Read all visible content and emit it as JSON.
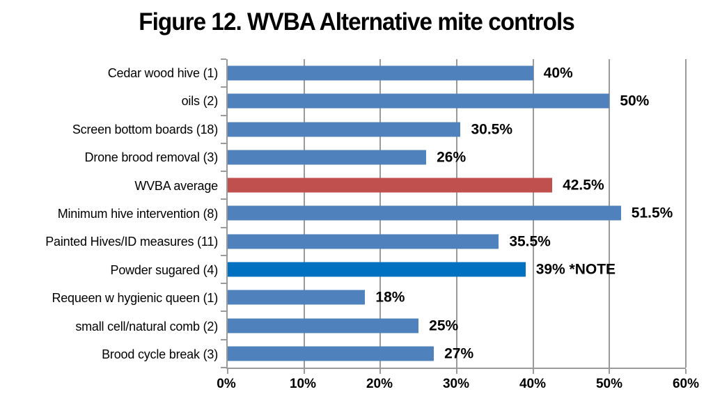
{
  "chart_data": {
    "type": "bar",
    "orientation": "horizontal",
    "title": "Figure 12. WVBA Alternative mite controls",
    "categories": [
      "Cedar wood hive (1)",
      "oils (2)",
      "Screen bottom boards (18)",
      "Drone brood removal (3)",
      "WVBA average",
      "Minimum hive intervention (8)",
      "Painted Hives/ID measures (11)",
      "Powder sugared (4)",
      "Requeen w hygienic queen (1)",
      "small cell/natural comb (2)",
      "Brood cycle break (3)"
    ],
    "values": [
      40,
      50,
      30.5,
      26,
      42.5,
      51.5,
      35.5,
      39,
      18,
      25,
      27
    ],
    "value_labels": [
      "40%",
      "50%",
      "30.5%",
      "26%",
      "42.5%",
      "51.5%",
      "35.5%",
      "39% *NOTE",
      "18%",
      "25%",
      "27%"
    ],
    "bar_color_keys": [
      "blue",
      "blue",
      "blue",
      "blue",
      "red",
      "blue",
      "blue",
      "bright_blue",
      "blue",
      "blue",
      "blue"
    ],
    "xlabel": "",
    "ylabel": "",
    "xlim": [
      0,
      60
    ],
    "x_tick_values": [
      0,
      10,
      20,
      30,
      40,
      50,
      60
    ],
    "x_tick_labels": [
      "0%",
      "10%",
      "20%",
      "30%",
      "40%",
      "50%",
      "60%"
    ],
    "grid": "vertical",
    "legend": "none",
    "colors": {
      "blue": "#4f81bd",
      "red": "#c0504d",
      "bright_blue": "#0070c0",
      "gridline": "#9a9a9a",
      "axis": "#9a9a9a",
      "text": "#000000",
      "background": "#ffffff"
    }
  }
}
